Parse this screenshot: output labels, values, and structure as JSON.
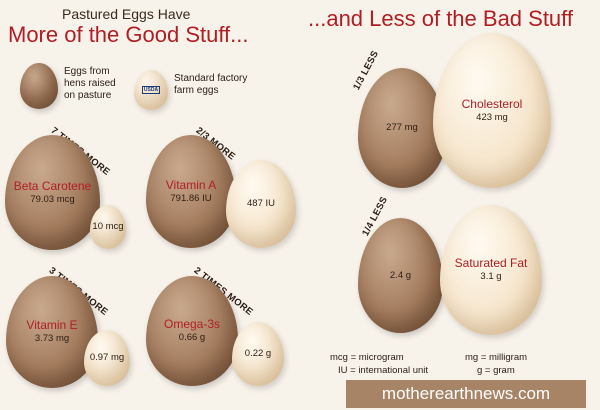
{
  "header": {
    "subtitle": "Pastured Eggs Have",
    "left_title": "More of the Good Stuff...",
    "right_title": "...and Less of the Bad Stuff"
  },
  "key": {
    "pasture_label_1": "Eggs from",
    "pasture_label_2": "hens raised",
    "pasture_label_3": "on pasture",
    "factory_label_1": "Standard factory",
    "factory_label_2": "farm eggs",
    "carton_text": "USDA"
  },
  "good": {
    "beta": {
      "ratio": "7 TIMES MORE",
      "name": "Beta Carotene",
      "pasture": "79.03 mcg",
      "factory": "10 mcg"
    },
    "vita": {
      "ratio": "2/3 MORE",
      "name": "Vitamin A",
      "pasture": "791.86 IU",
      "factory": "487 IU"
    },
    "vite": {
      "ratio": "3 TIMES MORE",
      "name": "Vitamin E",
      "pasture": "3.73 mg",
      "factory": "0.97 mg"
    },
    "omega": {
      "ratio": "2 TIMES MORE",
      "name": "Omega-3s",
      "pasture": "0.66 g",
      "factory": "0.22 g"
    }
  },
  "bad": {
    "chol": {
      "ratio": "1/3 LESS",
      "name": "Cholesterol",
      "pasture": "277 mg",
      "factory": "423 mg"
    },
    "fat": {
      "ratio": "1/4 LESS",
      "name": "Saturated Fat",
      "pasture": "2.4 g",
      "factory": "3.1 g"
    }
  },
  "units": {
    "mcg": "mcg = microgram",
    "mg": "mg = milligram",
    "iu": "IU = international unit",
    "g": "g = gram"
  },
  "footer": {
    "site": "motherearthnews.com"
  },
  "colors": {
    "red": "#b01e24",
    "banner": "#a88466"
  }
}
